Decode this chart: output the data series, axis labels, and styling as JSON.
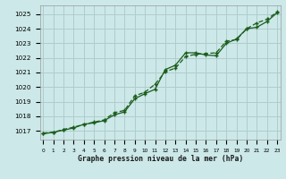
{
  "title": "Graphe pression niveau de la mer (hPa)",
  "bg_color": "#cce8e8",
  "grid_color": "#b0cccc",
  "line_color": "#1a5c1a",
  "x_labels": [
    "0",
    "1",
    "2",
    "3",
    "4",
    "5",
    "6",
    "7",
    "8",
    "9",
    "10",
    "11",
    "12",
    "13",
    "14",
    "15",
    "16",
    "17",
    "18",
    "19",
    "20",
    "21",
    "22",
    "23"
  ],
  "ylim": [
    1016.4,
    1025.6
  ],
  "yticks": [
    1017,
    1018,
    1019,
    1020,
    1021,
    1022,
    1023,
    1024,
    1025
  ],
  "series1": [
    1016.8,
    1016.9,
    1017.05,
    1017.2,
    1017.45,
    1017.55,
    1017.7,
    1018.1,
    1018.3,
    1019.2,
    1019.55,
    1019.85,
    1021.2,
    1021.5,
    1022.35,
    1022.35,
    1022.2,
    1022.15,
    1023.0,
    1023.3,
    1024.0,
    1024.1,
    1024.5,
    1025.1
  ],
  "series2": [
    1016.85,
    1016.9,
    1017.1,
    1017.25,
    1017.45,
    1017.6,
    1017.75,
    1018.25,
    1018.4,
    1019.4,
    1019.65,
    1020.2,
    1021.05,
    1021.3,
    1022.1,
    1022.25,
    1022.3,
    1022.35,
    1023.15,
    1023.25,
    1024.0,
    1024.4,
    1024.65,
    1025.15
  ]
}
